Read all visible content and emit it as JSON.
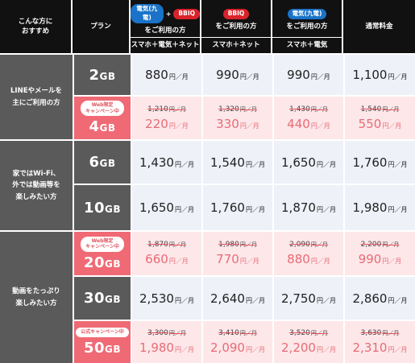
{
  "header": {
    "target_label": "こんな方に\nおすすめ",
    "plan_label": "プラン",
    "columns": [
      {
        "tags": [
          "電気(九電)",
          "BBIQ"
        ],
        "tag_colors": [
          "#1a73c8",
          "#d9222a"
        ],
        "plus": "+",
        "title": "をご利用の方",
        "sub": "スマホ＋電気＋ネット"
      },
      {
        "tags": [
          "BBIQ"
        ],
        "tag_colors": [
          "#d9222a"
        ],
        "title": "をご利用の方",
        "sub": "スマホ＋ネット"
      },
      {
        "tags": [
          "電気(九電)"
        ],
        "tag_colors": [
          "#1a73c8"
        ],
        "title": "をご利用の方",
        "sub": "スマホ＋電気"
      },
      {
        "title": "通常料金"
      }
    ]
  },
  "unit": "円／月",
  "categories": [
    "LINEやメールを\n主にご利用の方",
    "家ではWi-Fi、\n外では動画等を\n楽しみたい方",
    "動画をたっぷり\n楽しみたい方"
  ],
  "rows": [
    {
      "num": "2",
      "gb": "GB",
      "prices": [
        "880",
        "990",
        "990",
        "1,100"
      ]
    },
    {
      "num": "4",
      "gb": "GB",
      "badge": "Web限定\nキャンペーン中",
      "old": [
        "1,210",
        "1,320",
        "1,430",
        "1,540"
      ],
      "prices": [
        "220",
        "330",
        "440",
        "550"
      ]
    },
    {
      "num": "6",
      "gb": "GB",
      "prices": [
        "1,430",
        "1,540",
        "1,650",
        "1,760"
      ]
    },
    {
      "num": "10",
      "gb": "GB",
      "prices": [
        "1,650",
        "1,760",
        "1,870",
        "1,980"
      ]
    },
    {
      "num": "20",
      "gb": "GB",
      "badge": "Web限定\nキャンペーン中",
      "old": [
        "1,870",
        "1,980",
        "2,090",
        "2,200"
      ],
      "prices": [
        "660",
        "770",
        "880",
        "990"
      ]
    },
    {
      "num": "30",
      "gb": "GB",
      "prices": [
        "2,530",
        "2,640",
        "2,750",
        "2,860"
      ]
    },
    {
      "num": "50",
      "gb": "GB",
      "badge": "公式キャンペーン中",
      "old": [
        "3,300",
        "3,410",
        "3,520",
        "3,630"
      ],
      "prices": [
        "1,980",
        "2,090",
        "2,200",
        "2,310"
      ]
    }
  ],
  "colors": {
    "header": "#111111",
    "category": "#5a5a5a",
    "campaign": "#ef6a75",
    "price_bg": "#eef1f8",
    "campaign_bg": "#fde7e9",
    "campaign_price": "#e86b75"
  }
}
